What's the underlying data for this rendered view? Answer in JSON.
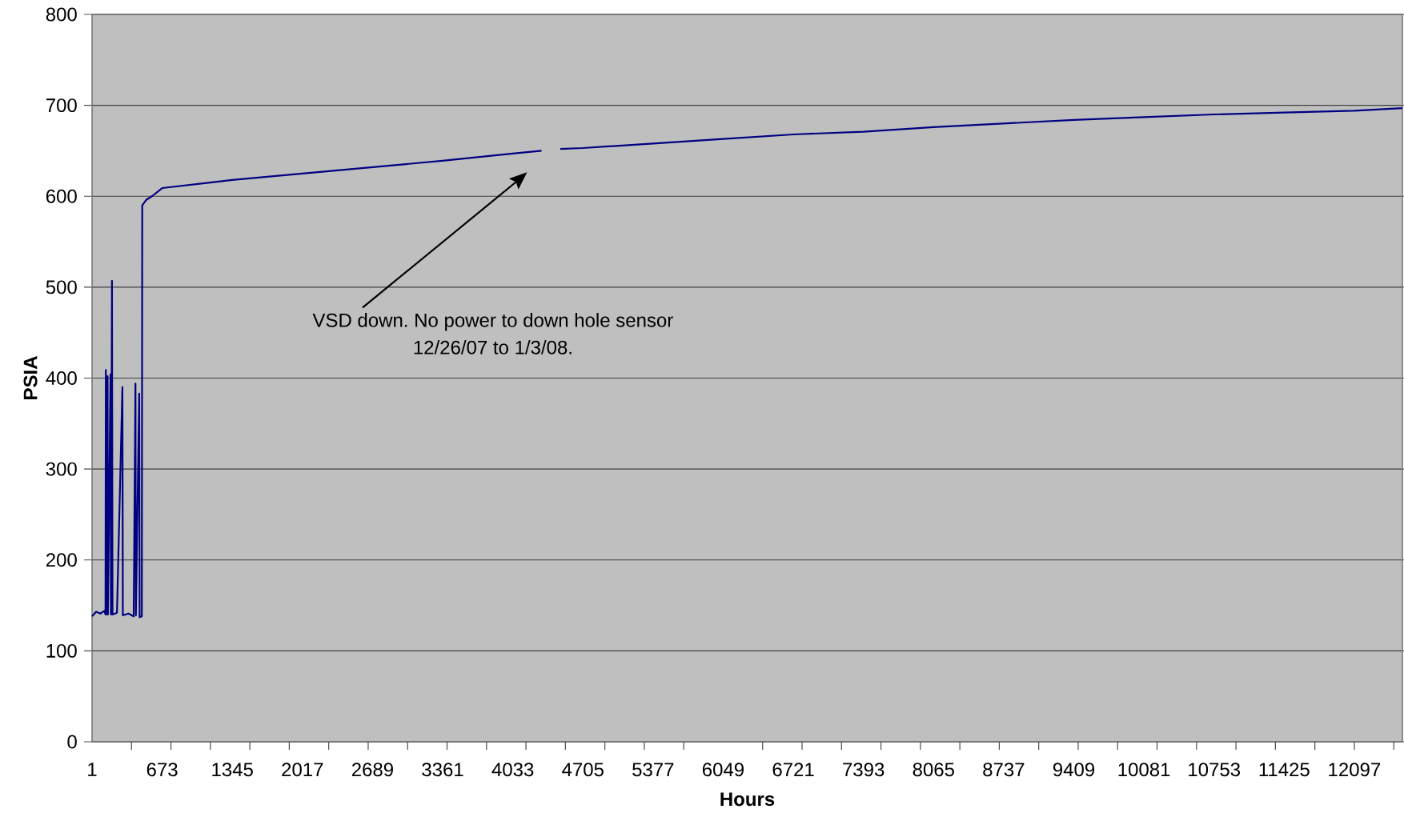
{
  "chart_data": {
    "type": "line",
    "xlabel": "Hours",
    "ylabel": "PSIA",
    "x": [
      1,
      40,
      80,
      120,
      130,
      133,
      137,
      150,
      153,
      178,
      182,
      192,
      197,
      240,
      292,
      296,
      350,
      400,
      417,
      421,
      453,
      457,
      478,
      482,
      520,
      575,
      673,
      1345,
      2017,
      2689,
      3361,
      4033,
      4309,
      4400,
      4488,
      4705,
      5377,
      6049,
      6721,
      7393,
      8065,
      8737,
      9409,
      10081,
      10753,
      11425,
      12097,
      12558
    ],
    "series": [
      {
        "color": "#000080",
        "values": [
          138,
          143,
          141,
          144,
          140,
          409,
          140,
          402,
          140,
          404,
          140,
          507,
          140,
          142,
          390,
          139,
          141,
          138,
          394,
          139,
          383,
          137,
          138,
          590,
          596,
          600,
          609,
          618,
          625,
          632,
          639,
          647,
          650,
          null,
          652,
          653,
          658,
          663,
          668,
          671,
          676,
          680,
          684,
          687,
          690,
          692,
          694,
          697
        ]
      }
    ],
    "xlim": [
      1,
      12558
    ],
    "ylim": [
      0,
      800
    ],
    "xticks": [
      1,
      673,
      1345,
      2017,
      2689,
      3361,
      4033,
      4705,
      5377,
      6049,
      6721,
      7393,
      8065,
      8737,
      9409,
      10081,
      10753,
      11425,
      12097,
      {
        "value": 379,
        "label": null
      },
      {
        "value": 757,
        "label": null
      },
      {
        "value": 1135,
        "label": null
      },
      {
        "value": 1513,
        "label": null
      },
      {
        "value": 1891,
        "label": null
      },
      {
        "value": 2269,
        "label": null
      },
      {
        "value": 2647,
        "label": null
      },
      {
        "value": 3025,
        "label": null
      },
      {
        "value": 3403,
        "label": null
      },
      {
        "value": 3781,
        "label": null
      },
      {
        "value": 4159,
        "label": null
      },
      {
        "value": 4537,
        "label": null
      },
      {
        "value": 4915,
        "label": null
      },
      {
        "value": 5293,
        "label": null
      },
      {
        "value": 5671,
        "label": null
      },
      {
        "value": 6427,
        "label": null
      },
      {
        "value": 6805,
        "label": null
      },
      {
        "value": 7183,
        "label": null
      },
      {
        "value": 7561,
        "label": null
      },
      {
        "value": 7939,
        "label": null
      },
      {
        "value": 8317,
        "label": null
      },
      {
        "value": 8695,
        "label": null
      },
      {
        "value": 9073,
        "label": null
      },
      {
        "value": 9451,
        "label": null
      },
      {
        "value": 9829,
        "label": null
      },
      {
        "value": 10207,
        "label": null
      },
      {
        "value": 10585,
        "label": null
      },
      {
        "value": 10963,
        "label": null
      },
      {
        "value": 11341,
        "label": null
      },
      {
        "value": 11719,
        "label": null
      },
      {
        "value": 12097.5,
        "label": null
      },
      {
        "value": 12475,
        "label": null
      }
    ],
    "yticks": [
      0,
      100,
      200,
      300,
      400,
      500,
      600,
      700,
      800
    ],
    "grid": "y",
    "annotations": [
      "VSD down. No power to down hole sensor 12/26/07 to 1/3/08."
    ]
  }
}
